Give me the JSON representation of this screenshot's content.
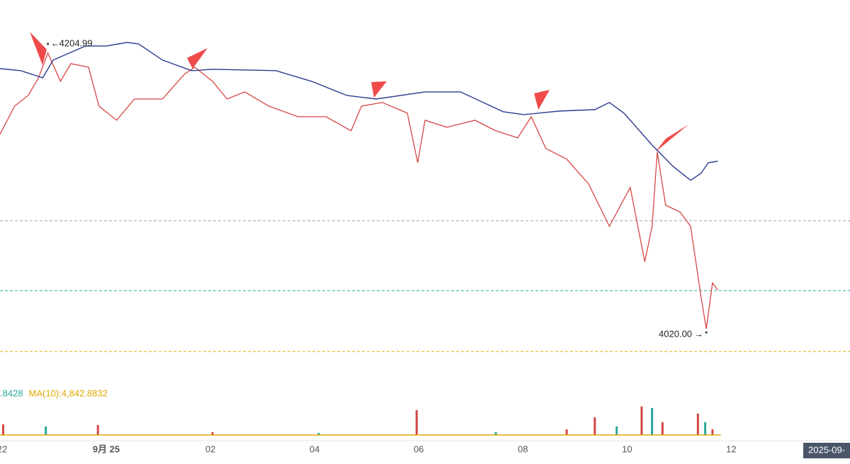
{
  "chart_data": {
    "type": "line",
    "xticks": [
      {
        "value": 0,
        "label": "22"
      },
      {
        "value": 1,
        "label": "9月 25"
      },
      {
        "value": 2,
        "label": "02"
      },
      {
        "value": 3,
        "label": "04"
      },
      {
        "value": 4,
        "label": "06"
      },
      {
        "value": 5,
        "label": "08"
      },
      {
        "value": 6,
        "label": "10"
      },
      {
        "value": 7,
        "label": "12"
      }
    ],
    "xlim": [
      -0.02,
      8.14
    ],
    "ylim": [
      3997.3,
      4233.1
    ],
    "corner_label": "2025-09-",
    "series": [
      {
        "color": "#d64545",
        "x": [
          -0.02,
          0.12,
          0.25,
          0.35,
          0.44,
          0.56,
          0.66,
          0.83,
          0.93,
          1.1,
          1.27,
          1.54,
          1.75,
          1.85,
          2.02,
          2.16,
          2.33,
          2.56,
          2.84,
          3.11,
          3.35,
          3.45,
          3.65,
          3.89,
          3.99,
          4.06,
          4.27,
          4.54,
          4.74,
          4.95,
          5.08,
          5.22,
          5.42,
          5.63,
          5.83,
          6.03,
          6.17,
          6.24,
          6.29,
          6.37,
          6.51,
          6.61,
          6.71,
          6.76,
          6.82,
          6.87
        ],
        "values": [
          4146.9,
          4165.1,
          4171.9,
          4183.2,
          4199.1,
          4181.0,
          4192.3,
          4190.0,
          4165.1,
          4156.0,
          4169.6,
          4169.6,
          4185.5,
          4190.0,
          4181.0,
          4169.6,
          4174.2,
          4165.1,
          4158.3,
          4158.3,
          4149.2,
          4165.1,
          4167.4,
          4160.6,
          4128.8,
          4156.0,
          4151.5,
          4156.0,
          4149.2,
          4144.7,
          4158.3,
          4137.9,
          4131.1,
          4115.2,
          4088.0,
          4113.0,
          4065.3,
          4088.0,
          4135.6,
          4101.6,
          4097.1,
          4088.0,
          4042.7,
          4022.3,
          4051.7,
          4047.2
        ]
      },
      {
        "color": "#2b3a8f",
        "x": [
          -0.02,
          0.18,
          0.39,
          0.49,
          0.8,
          1.0,
          1.2,
          1.31,
          1.54,
          1.82,
          2.02,
          2.63,
          2.97,
          3.31,
          3.59,
          4.06,
          4.4,
          4.81,
          5.01,
          5.35,
          5.69,
          5.83,
          5.97,
          6.24,
          6.44,
          6.61,
          6.71,
          6.78,
          6.87
        ],
        "values": [
          4189.1,
          4187.8,
          4183.2,
          4194.6,
          4203.6,
          4203.6,
          4205.9,
          4205.0,
          4194.6,
          4187.8,
          4188.7,
          4187.8,
          4181.0,
          4171.9,
          4169.6,
          4174.2,
          4174.2,
          4161.5,
          4159.6,
          4161.9,
          4162.8,
          4167.4,
          4160.6,
          4140.1,
          4126.5,
          4117.5,
          4122.0,
          4128.8,
          4129.7
        ]
      }
    ],
    "levels": [
      {
        "value": 4091.6,
        "color": "#9e9e9e"
      },
      {
        "value": 4046.8,
        "color": "#26a69a"
      },
      {
        "value": 4007.8,
        "color": "#d4b106"
      }
    ],
    "annotations": [
      {
        "label": "4204.99",
        "value": 4204.99,
        "x": 0.44
      },
      {
        "label": "4020.00",
        "value": 4020,
        "x": 6.76
      }
    ],
    "volume": {
      "ylim": [
        0,
        70000
      ],
      "legend": [
        {
          "text": ".8428",
          "color": "#26a69a"
        },
        {
          "text": "MA(10):4,842.8832",
          "color": "#e0a800"
        }
      ],
      "x": [
        0.01,
        0.42,
        0.92,
        2.02,
        3.04,
        3.98,
        4.74,
        5.42,
        5.69,
        5.9,
        6.14,
        6.24,
        6.34,
        6.68,
        6.75,
        6.82
      ],
      "values": [
        24000,
        19200,
        22400,
        6400,
        4800,
        56000,
        6400,
        12800,
        40000,
        19200,
        64000,
        60800,
        28800,
        48000,
        28800,
        12800
      ],
      "colors": [
        "#d64545",
        "#26a69a",
        "#d64545",
        "#d64545",
        "#26a69a",
        "#d64545",
        "#26a69a",
        "#d64545",
        "#d64545",
        "#26a69a",
        "#d64545",
        "#26a69a",
        "#d64545",
        "#d64545",
        "#26a69a",
        "#d64545"
      ]
    }
  }
}
